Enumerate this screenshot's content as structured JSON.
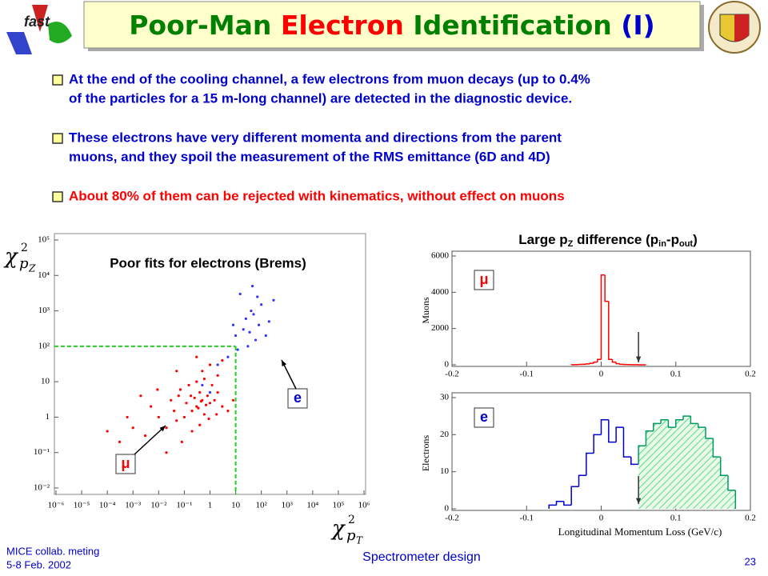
{
  "header": {
    "logo_text": "fast",
    "title": [
      {
        "text": "Poor-Man",
        "color": "#008000"
      },
      {
        "text": "Electron",
        "color": "#ff0000"
      },
      {
        "text": "Identification",
        "color": "#008000"
      },
      {
        "text": "(I)",
        "color": "#0000cc"
      }
    ]
  },
  "bullets": [
    {
      "color": "#0000cc",
      "lines": [
        "At the end of the cooling channel, a few electrons from muon decays (up to 0.4%",
        "of the particles for a 15 m-long channel) are detected in the diagnostic device."
      ]
    },
    {
      "color": "#0000cc",
      "lines": [
        "These electrons have very different momenta and directions from the parent",
        "muons, and they spoil the measurement of the RMS emittance (6D and 4D)"
      ]
    },
    {
      "color": "#ff0000",
      "lines": [
        "About 80% of them can be rejected with kinematics, without effect on muons"
      ]
    }
  ],
  "chart_data": [
    {
      "type": "scatter",
      "title": "Poor fits for electrons (Brems)",
      "x_label": [
        "χ",
        "2",
        "p",
        "T"
      ],
      "y_label": [
        "χ",
        "2",
        "p",
        "Z"
      ],
      "log_x": true,
      "log_y": true,
      "xlim": [
        1e-06,
        1000000
      ],
      "ylim": [
        0.01,
        100000
      ],
      "xticks": [
        {
          "value": 1e-06,
          "label": "10⁻⁶"
        },
        {
          "value": 1e-05,
          "label": "10⁻⁵"
        },
        {
          "value": 0.0001,
          "label": "10⁻⁴"
        },
        {
          "value": 0.001,
          "label": "10⁻³"
        },
        {
          "value": 0.01,
          "label": "10⁻²"
        },
        {
          "value": 0.1,
          "label": "10⁻¹"
        },
        1,
        10,
        {
          "value": 100,
          "label": "10²"
        },
        {
          "value": 1000,
          "label": "10³"
        },
        {
          "value": 10000,
          "label": "10⁴"
        },
        {
          "value": 100000,
          "label": "10⁵"
        },
        {
          "value": 1000000,
          "label": "10⁶"
        }
      ],
      "yticks": [
        {
          "value": 0.01,
          "label": "10⁻²"
        },
        {
          "value": 0.1,
          "label": "10⁻¹"
        },
        1,
        10,
        {
          "value": 100,
          "label": "10²"
        },
        {
          "value": 1000,
          "label": "10³"
        },
        {
          "value": 10000,
          "label": "10⁴"
        },
        {
          "value": 100000,
          "label": "10⁵"
        }
      ],
      "cuts": {
        "x": 10,
        "y": 100,
        "color": "#22cc22"
      },
      "series": [
        {
          "color": "#ff0000",
          "x": [
            0.3,
            0.5,
            0.2,
            0.8,
            1,
            0.1,
            0.4,
            0.6,
            1.5,
            0.05,
            0.02,
            0.01,
            0.003,
            0.001,
            0.0003,
            0.0001,
            0.005,
            0.03,
            0.07,
            0.15,
            0.3,
            0.6,
            1.2,
            2,
            3,
            5,
            0.2,
            0.4,
            0.9,
            0.08,
            0.02,
            0.5,
            1,
            2,
            0.25,
            0.35,
            0.45,
            0.7,
            0.12,
            0.18,
            1.8,
            0.06,
            0.04,
            8,
            0.009,
            0.002,
            0.0006,
            3,
            0.3,
            0.05
          ],
          "values": [
            2,
            3,
            1.5,
            4,
            2.5,
            1,
            5,
            1.2,
            3,
            0.8,
            0.5,
            1,
            0.3,
            0.5,
            0.2,
            0.4,
            2,
            3,
            6,
            8,
            10,
            12,
            8,
            5,
            2,
            1.5,
            0.4,
            0.6,
            0.9,
            0.2,
            0.1,
            20,
            30,
            15,
            3.5,
            1.8,
            2.8,
            2.2,
            2.5,
            4,
            1.2,
            4,
            1.5,
            3,
            6,
            4,
            1,
            40,
            50,
            20
          ]
        },
        {
          "color": "#3333ff",
          "x": [
            20,
            50,
            10,
            100,
            30,
            200,
            5,
            15,
            80,
            40,
            150,
            60,
            25,
            8,
            300,
            12,
            70,
            35,
            2,
            45,
            1,
            0.5
          ],
          "values": [
            300,
            800,
            200,
            1500,
            100,
            500,
            50,
            3000,
            400,
            1000,
            200,
            150,
            600,
            400,
            2000,
            80,
            2500,
            250,
            30,
            5000,
            5,
            8
          ]
        }
      ],
      "annotations": [
        "μ",
        "e"
      ]
    },
    {
      "type": "histogram",
      "title": [
        "Large p",
        "Z",
        " difference (p",
        "in",
        "-p",
        "out",
        ")"
      ],
      "y_label": "Muons",
      "label": "μ",
      "color": "#ff0000",
      "xlim": [
        -0.2,
        0.2
      ],
      "ylim": [
        0,
        6000
      ],
      "xticks": [
        -0.2,
        -0.1,
        0,
        0.1,
        0.2
      ],
      "yticks": [
        0,
        2000,
        4000,
        6000
      ],
      "cut": 0.05,
      "bins": [
        -0.04,
        -0.035,
        -0.03,
        -0.025,
        -0.02,
        -0.015,
        -0.01,
        -0.005,
        0,
        0.005,
        0.01,
        0.015,
        0.02,
        0.025,
        0.03,
        0.035,
        0.04,
        0.045,
        0.05,
        0.055,
        0.06
      ],
      "values": [
        5,
        10,
        20,
        30,
        50,
        80,
        150,
        300,
        4950,
        3500,
        300,
        150,
        60,
        30,
        15,
        10,
        5,
        3,
        2,
        1
      ]
    },
    {
      "type": "histogram",
      "y_label": "Electrons",
      "x_label": "Longitudinal Momentum Loss (GeV/c)",
      "label": "e",
      "color": "#0000cc",
      "highlight_color": "#009966",
      "xlim": [
        -0.2,
        0.2
      ],
      "ylim": [
        0,
        30
      ],
      "xticks": [
        -0.2,
        -0.1,
        0,
        0.1,
        0.2
      ],
      "yticks": [
        0,
        10,
        20,
        30
      ],
      "cut": 0.05,
      "bins": [
        -0.07,
        -0.06,
        -0.05,
        -0.04,
        -0.03,
        -0.02,
        -0.01,
        0,
        0.01,
        0.02,
        0.03,
        0.04,
        0.05,
        0.06,
        0.07,
        0.08,
        0.09,
        0.1,
        0.11,
        0.12,
        0.13,
        0.14,
        0.15,
        0.16,
        0.17,
        0.18
      ],
      "values": [
        1,
        2,
        1,
        6,
        9,
        15,
        20,
        24,
        18,
        22,
        14,
        12,
        17,
        21,
        23,
        24,
        22,
        24,
        25,
        23,
        22,
        19,
        14,
        9,
        5
      ]
    }
  ],
  "footer": {
    "left": [
      "MICE collab. meting",
      "5-8 Feb. 2002"
    ],
    "center": "Spectrometer design",
    "page": "23"
  }
}
